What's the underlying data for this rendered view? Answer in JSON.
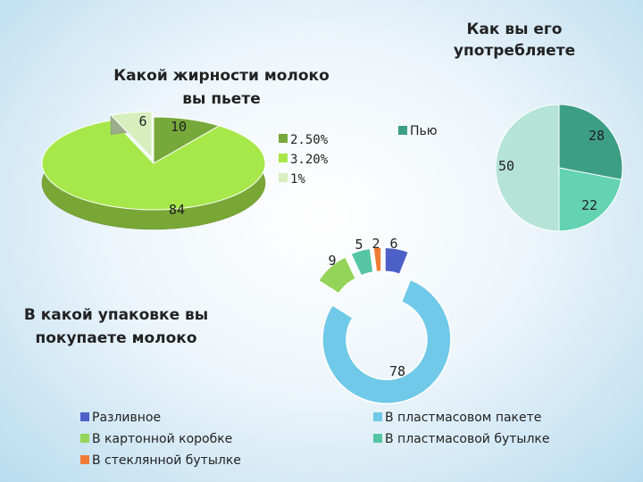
{
  "chart_data": [
    {
      "type": "pie",
      "title": "Какой жирности молоко вы пьете",
      "categories": [
        "2.50%",
        "3.20%",
        "1%"
      ],
      "values": [
        10,
        84,
        6
      ],
      "colors": [
        "#77a83a",
        "#a6e84a",
        "#d7efbf"
      ],
      "legend": "right"
    },
    {
      "type": "pie",
      "title": "Как вы его употребляете",
      "categories": [
        "",
        "",
        ""
      ],
      "values": [
        28,
        22,
        50
      ],
      "colors": [
        "#3c9e85",
        "#63d3b1",
        "#b5e3d5"
      ],
      "legend_label": "Пью",
      "legend": "top-left"
    },
    {
      "type": "pie",
      "subtype": "doughnut",
      "title": "В какой упаковке вы покупаете молоко",
      "categories": [
        "Разливное",
        "В пластмасовом пакете",
        "В картонной коробке",
        "В пластмасовой бутылке",
        "В стеклянной бутылке"
      ],
      "values": [
        6,
        78,
        9,
        5,
        2
      ],
      "colors": [
        "#4d60c7",
        "#70c9e8",
        "#93d459",
        "#55c5a3",
        "#f07c35"
      ],
      "legend": "bottom"
    }
  ]
}
